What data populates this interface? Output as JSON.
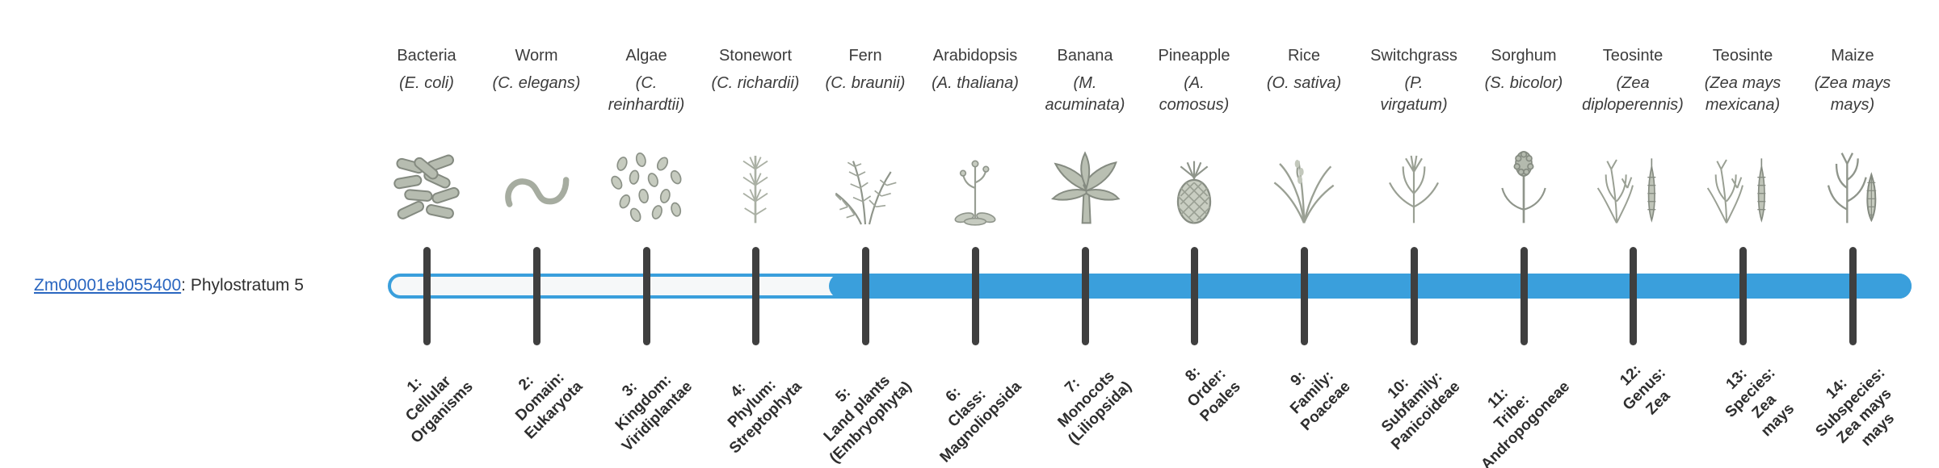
{
  "gene": {
    "id": "Zm00001eb055400",
    "suffix": ": Phylostratum 5"
  },
  "bar": {
    "fill_color": "#3a9fdc",
    "outline_color": "#3a9fdc",
    "track_color": "#f6f8f9",
    "filled_from_stratum": 5
  },
  "organisms": [
    {
      "name": "Bacteria",
      "sci_lines": [
        "(E. coli)"
      ],
      "icon": "bacteria",
      "stratum": 1,
      "label_lines": [
        "1:",
        "Cellular",
        "Organisms"
      ]
    },
    {
      "name": "Worm",
      "sci_lines": [
        "(C. elegans)"
      ],
      "icon": "worm",
      "stratum": 2,
      "label_lines": [
        "2:",
        "Domain:",
        "Eukaryota"
      ]
    },
    {
      "name": "Algae",
      "sci_lines": [
        "(C.",
        "reinhardtii)"
      ],
      "icon": "algae",
      "stratum": 3,
      "label_lines": [
        "3:",
        "Kingdom:",
        "Viridiplantae"
      ]
    },
    {
      "name": "Stonewort",
      "sci_lines": [
        "(C. richardii)"
      ],
      "icon": "stonewort",
      "stratum": 4,
      "label_lines": [
        "4:",
        "Phylum:",
        "Streptophyta"
      ]
    },
    {
      "name": "Fern",
      "sci_lines": [
        "(C. braunii)"
      ],
      "icon": "fern",
      "stratum": 5,
      "label_lines": [
        "5:",
        "Land plants",
        "(Embryophyta)"
      ]
    },
    {
      "name": "Arabidopsis",
      "sci_lines": [
        "(A. thaliana)"
      ],
      "icon": "arabidopsis",
      "stratum": 6,
      "label_lines": [
        "6:",
        "Class:",
        "Magnoliopsida"
      ]
    },
    {
      "name": "Banana",
      "sci_lines": [
        "(M.",
        "acuminata)"
      ],
      "icon": "banana",
      "stratum": 7,
      "label_lines": [
        "7:",
        "Monocots",
        "(Liliopsida)"
      ]
    },
    {
      "name": "Pineapple",
      "sci_lines": [
        "(A.",
        "comosus)"
      ],
      "icon": "pineapple",
      "stratum": 8,
      "label_lines": [
        "8:",
        "Order:",
        "Poales"
      ]
    },
    {
      "name": "Rice",
      "sci_lines": [
        "(O. sativa)"
      ],
      "icon": "rice",
      "stratum": 9,
      "label_lines": [
        "9:",
        "Family:",
        "Poaceae"
      ]
    },
    {
      "name": "Switchgrass",
      "sci_lines": [
        "(P.",
        "virgatum)"
      ],
      "icon": "switchgrass",
      "stratum": 10,
      "label_lines": [
        "10:",
        "Subfamily:",
        "Panicoideae"
      ]
    },
    {
      "name": "Sorghum",
      "sci_lines": [
        "(S. bicolor)"
      ],
      "icon": "sorghum",
      "stratum": 11,
      "label_lines": [
        "11:",
        "Tribe:",
        "Andropogoneae"
      ]
    },
    {
      "name": "Teosinte",
      "sci_lines": [
        "(Zea",
        "diploperennis)"
      ],
      "icon": "teosinte",
      "stratum": 12,
      "label_lines": [
        "12:",
        "Genus:",
        "Zea"
      ]
    },
    {
      "name": "Teosinte",
      "sci_lines": [
        "(Zea mays",
        "mexicana)"
      ],
      "icon": "teosinte",
      "stratum": 13,
      "label_lines": [
        "13:",
        "Species:",
        "Zea",
        "mays"
      ]
    },
    {
      "name": "Maize",
      "sci_lines": [
        "(Zea mays",
        "mays)"
      ],
      "icon": "maize",
      "stratum": 14,
      "label_lines": [
        "14:",
        "Subspecies:",
        "Zea mays",
        "mays"
      ]
    }
  ]
}
